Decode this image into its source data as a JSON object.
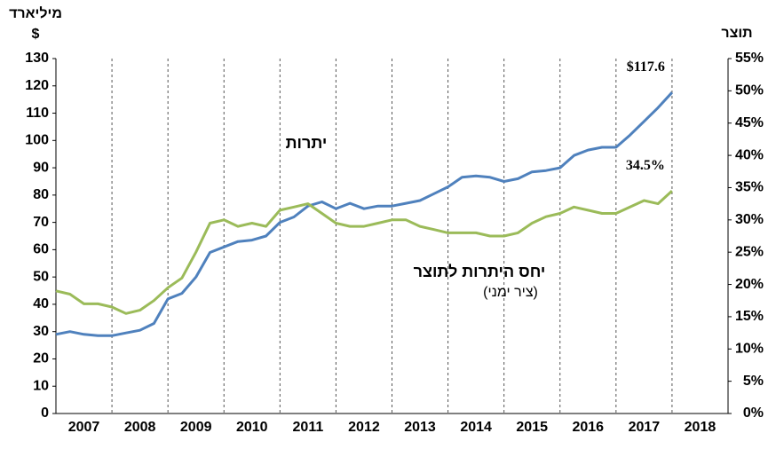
{
  "chart_data": {
    "type": "line",
    "y_label": "מיליארד",
    "y_label_unit": "$",
    "y2_label": "תוצר",
    "note": "(ציר ימני)",
    "categories": [
      "2007",
      null,
      null,
      null,
      "2008",
      null,
      null,
      null,
      "2009",
      null,
      null,
      null,
      "2010",
      null,
      null,
      null,
      "2011",
      null,
      null,
      null,
      "2012",
      null,
      null,
      null,
      "2013",
      null,
      null,
      null,
      "2014",
      null,
      null,
      null,
      "2015",
      null,
      null,
      null,
      "2016",
      null,
      null,
      null,
      "2017",
      null,
      null,
      null,
      "2018"
    ],
    "series": [
      {
        "name": "יתרות",
        "color": "#4f81bd",
        "axis": "y",
        "values": [
          29,
          30,
          29,
          28.5,
          28.5,
          29.5,
          30.5,
          33,
          42,
          44,
          50,
          59,
          61,
          63,
          63.5,
          65,
          70,
          72,
          76,
          77.5,
          75,
          77,
          75,
          76,
          76,
          77,
          78,
          80.5,
          83,
          86.5,
          87,
          86.5,
          85,
          86,
          88.5,
          89,
          90,
          94.5,
          96.5,
          97.5,
          97.5,
          102,
          107,
          112,
          117.6
        ],
        "end_label": "$117.6"
      },
      {
        "name": "יחס היתרות לתוצר",
        "color": "#9bbb59",
        "axis": "y2",
        "values": [
          19,
          18.5,
          17,
          17,
          16.5,
          15.5,
          16,
          17.5,
          19.5,
          21,
          25,
          29.5,
          30,
          29,
          29.5,
          29,
          31.5,
          32,
          32.5,
          31,
          29.5,
          29,
          29,
          29.5,
          30,
          30,
          29,
          28.5,
          28,
          28,
          28,
          27.5,
          27.5,
          28,
          29.5,
          30.5,
          31,
          32,
          31.5,
          31,
          31,
          32,
          33,
          32.5,
          34.5
        ],
        "end_label": "34.5%"
      }
    ],
    "ylim": [
      0,
      130
    ],
    "yticks": [
      0,
      10,
      20,
      30,
      40,
      50,
      60,
      70,
      80,
      90,
      100,
      110,
      120,
      130
    ],
    "y2lim": [
      0,
      55
    ],
    "y2ticks": [
      {
        "value": 0,
        "label": "0%"
      },
      {
        "value": 5,
        "label": "5%"
      },
      {
        "value": 10,
        "label": "10%"
      },
      {
        "value": 15,
        "label": "15%"
      },
      {
        "value": 20,
        "label": "20%"
      },
      {
        "value": 25,
        "label": "25%"
      },
      {
        "value": 30,
        "label": "30%"
      },
      {
        "value": 35,
        "label": "35%"
      },
      {
        "value": 40,
        "label": "40%"
      },
      {
        "value": 45,
        "label": "45%"
      },
      {
        "value": 50,
        "label": "50%"
      },
      {
        "value": 55,
        "label": "55%"
      }
    ]
  }
}
